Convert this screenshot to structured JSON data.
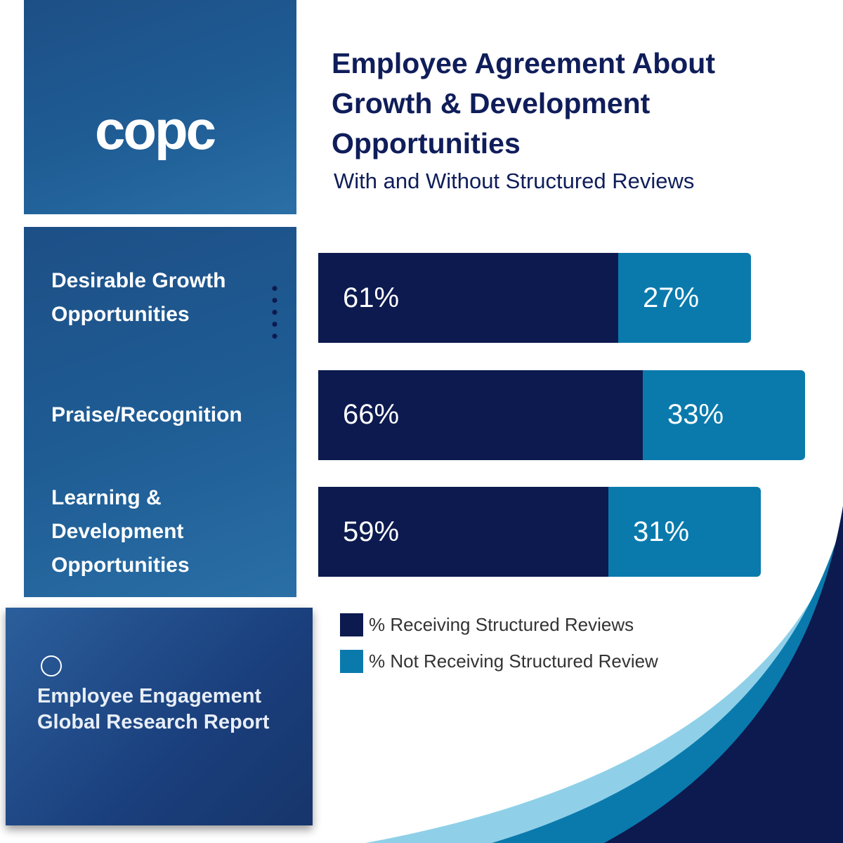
{
  "logo": "copc",
  "report": {
    "title": "Employee Engagement Global Research Report"
  },
  "chart_data": {
    "type": "bar",
    "stacked": true,
    "orientation": "horizontal",
    "title": "Employee Agreement About Growth & Development Opportunities",
    "subtitle": "With and Without Structured Reviews",
    "categories": [
      "Desirable Growth Opportunities",
      "Praise/Recognition",
      "Learning & Development Opportunities"
    ],
    "series": [
      {
        "name": "% Receiving Structured Reviews",
        "color": "#0c1a4f",
        "values": [
          61,
          66,
          59
        ],
        "value_labels": [
          "61%",
          "66%",
          "59%"
        ]
      },
      {
        "name": "% Not Receiving Structured Review",
        "color": "#0a7aad",
        "values": [
          27,
          33,
          31
        ],
        "value_labels": [
          "27%",
          "33%",
          "31%"
        ]
      }
    ]
  }
}
